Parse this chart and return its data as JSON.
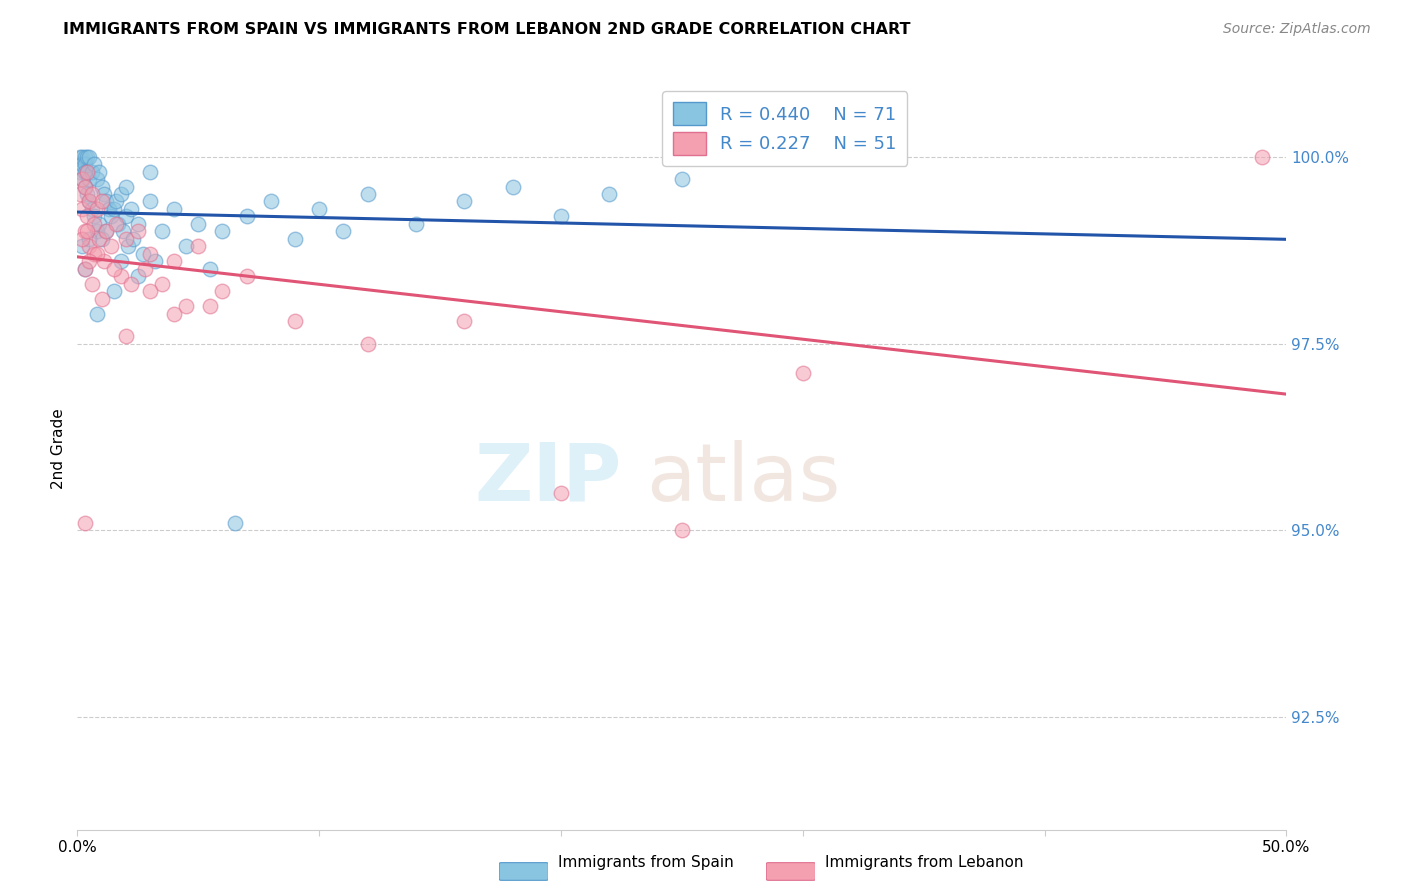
{
  "title": "IMMIGRANTS FROM SPAIN VS IMMIGRANTS FROM LEBANON 2ND GRADE CORRELATION CHART",
  "source": "Source: ZipAtlas.com",
  "ylabel": "2nd Grade",
  "y_ticks": [
    92.5,
    95.0,
    97.5,
    100.0
  ],
  "x_min": 0.0,
  "x_max": 50.0,
  "y_min": 91.0,
  "y_max": 101.2,
  "spain_color": "#89c4e1",
  "lebanon_color": "#f4a0b0",
  "spain_edge_color": "#5599cc",
  "lebanon_edge_color": "#e07090",
  "spain_line_color": "#2255aa",
  "lebanon_line_color": "#e05575",
  "spain_R": 0.44,
  "spain_N": 71,
  "lebanon_R": 0.227,
  "lebanon_N": 51,
  "background_color": "#ffffff",
  "grid_color": "#cccccc",
  "right_tick_color": "#4488cc",
  "spain_x": [
    0.1,
    0.1,
    0.2,
    0.2,
    0.2,
    0.3,
    0.3,
    0.3,
    0.3,
    0.4,
    0.4,
    0.4,
    0.5,
    0.5,
    0.5,
    0.6,
    0.6,
    0.7,
    0.7,
    0.8,
    0.8,
    0.9,
    0.9,
    1.0,
    1.0,
    1.1,
    1.2,
    1.3,
    1.4,
    1.5,
    1.6,
    1.7,
    1.8,
    1.9,
    2.0,
    2.1,
    2.2,
    2.3,
    2.5,
    2.7,
    3.0,
    3.2,
    3.5,
    4.0,
    4.5,
    5.0,
    5.5,
    6.0,
    7.0,
    8.0,
    9.0,
    10.0,
    11.0,
    12.0,
    14.0,
    16.0,
    18.0,
    20.0,
    22.0,
    25.0,
    1.5,
    2.0,
    2.5,
    3.0,
    0.2,
    0.3,
    0.5,
    0.8,
    1.2,
    1.8,
    6.5
  ],
  "spain_y": [
    100.0,
    99.8,
    100.0,
    99.9,
    99.7,
    100.0,
    99.9,
    99.8,
    99.6,
    100.0,
    99.8,
    99.5,
    100.0,
    99.7,
    99.4,
    99.8,
    99.3,
    99.9,
    99.2,
    99.7,
    99.0,
    99.8,
    99.1,
    99.6,
    98.9,
    99.5,
    99.4,
    99.3,
    99.2,
    99.3,
    99.4,
    99.1,
    99.5,
    99.0,
    99.2,
    98.8,
    99.3,
    98.9,
    99.1,
    98.7,
    99.4,
    98.6,
    99.0,
    99.3,
    98.8,
    99.1,
    98.5,
    99.0,
    99.2,
    99.4,
    98.9,
    99.3,
    99.0,
    99.5,
    99.1,
    99.4,
    99.6,
    99.2,
    99.5,
    99.7,
    98.2,
    99.6,
    98.4,
    99.8,
    98.8,
    98.5,
    98.9,
    97.9,
    99.0,
    98.6,
    95.1
  ],
  "lebanon_x": [
    0.1,
    0.2,
    0.2,
    0.3,
    0.3,
    0.4,
    0.4,
    0.5,
    0.5,
    0.6,
    0.7,
    0.7,
    0.8,
    0.9,
    1.0,
    1.1,
    1.2,
    1.4,
    1.6,
    1.8,
    2.0,
    2.2,
    2.5,
    2.8,
    3.0,
    3.5,
    4.0,
    4.5,
    5.0,
    6.0,
    0.2,
    0.3,
    0.4,
    0.6,
    0.8,
    1.0,
    1.5,
    2.0,
    3.0,
    4.0,
    5.5,
    7.0,
    9.0,
    12.0,
    16.0,
    20.0,
    25.0,
    30.0,
    0.5,
    0.3,
    49.0
  ],
  "lebanon_y": [
    99.5,
    99.7,
    99.3,
    99.6,
    99.0,
    99.8,
    99.2,
    99.4,
    98.8,
    99.5,
    99.1,
    98.7,
    99.3,
    98.9,
    99.4,
    98.6,
    99.0,
    98.8,
    99.1,
    98.4,
    98.9,
    98.3,
    99.0,
    98.5,
    98.7,
    98.3,
    98.6,
    98.0,
    98.8,
    98.2,
    98.9,
    98.5,
    99.0,
    98.3,
    98.7,
    98.1,
    98.5,
    97.6,
    98.2,
    97.9,
    98.0,
    98.4,
    97.8,
    97.5,
    97.8,
    95.5,
    95.0,
    97.1,
    98.6,
    95.1,
    100.0
  ]
}
